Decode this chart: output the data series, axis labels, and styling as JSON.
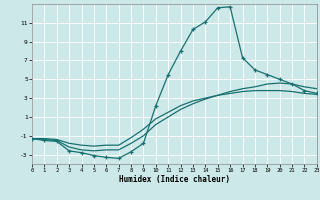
{
  "xlabel": "Humidex (Indice chaleur)",
  "bg_color": "#cce8e8",
  "line_color": "#1a7070",
  "grid_color": "#ffffff",
  "xlim": [
    0,
    23
  ],
  "ylim": [
    -4,
    13
  ],
  "yticks": [
    -3,
    -1,
    1,
    3,
    5,
    7,
    9,
    11
  ],
  "xticks": [
    0,
    1,
    2,
    3,
    4,
    5,
    6,
    7,
    8,
    9,
    10,
    11,
    12,
    13,
    14,
    15,
    16,
    17,
    18,
    19,
    20,
    21,
    22,
    23
  ],
  "line1_x": [
    0,
    1,
    2,
    3,
    4,
    5,
    6,
    7,
    8,
    9,
    10,
    11,
    12,
    13,
    14,
    15,
    16,
    17,
    18,
    19,
    20,
    21,
    22,
    23
  ],
  "line1_y": [
    -1.3,
    -1.5,
    -1.6,
    -2.6,
    -2.8,
    -3.1,
    -3.3,
    -3.4,
    -2.7,
    -1.8,
    2.2,
    5.5,
    8.0,
    10.3,
    11.1,
    12.6,
    12.7,
    7.3,
    6.0,
    5.5,
    5.0,
    4.5,
    3.8,
    3.5
  ],
  "line2_x": [
    0,
    1,
    2,
    3,
    4,
    5,
    6,
    7,
    8,
    9,
    10,
    11,
    12,
    13,
    14,
    15,
    16,
    17,
    18,
    19,
    20,
    21,
    22,
    23
  ],
  "line2_y": [
    -1.3,
    -1.4,
    -1.5,
    -2.2,
    -2.5,
    -2.6,
    -2.5,
    -2.5,
    -1.8,
    -1.0,
    0.2,
    1.0,
    1.8,
    2.4,
    2.9,
    3.3,
    3.7,
    4.0,
    4.2,
    4.5,
    4.6,
    4.5,
    4.2,
    4.0
  ],
  "line3_x": [
    0,
    1,
    2,
    3,
    4,
    5,
    6,
    7,
    8,
    9,
    10,
    11,
    12,
    13,
    14,
    15,
    16,
    17,
    18,
    19,
    20,
    21,
    22,
    23
  ],
  "line3_y": [
    -1.3,
    -1.3,
    -1.4,
    -1.8,
    -2.0,
    -2.1,
    -2.0,
    -2.0,
    -1.2,
    -0.3,
    0.8,
    1.5,
    2.2,
    2.7,
    3.0,
    3.3,
    3.5,
    3.7,
    3.8,
    3.8,
    3.8,
    3.7,
    3.5,
    3.4
  ]
}
